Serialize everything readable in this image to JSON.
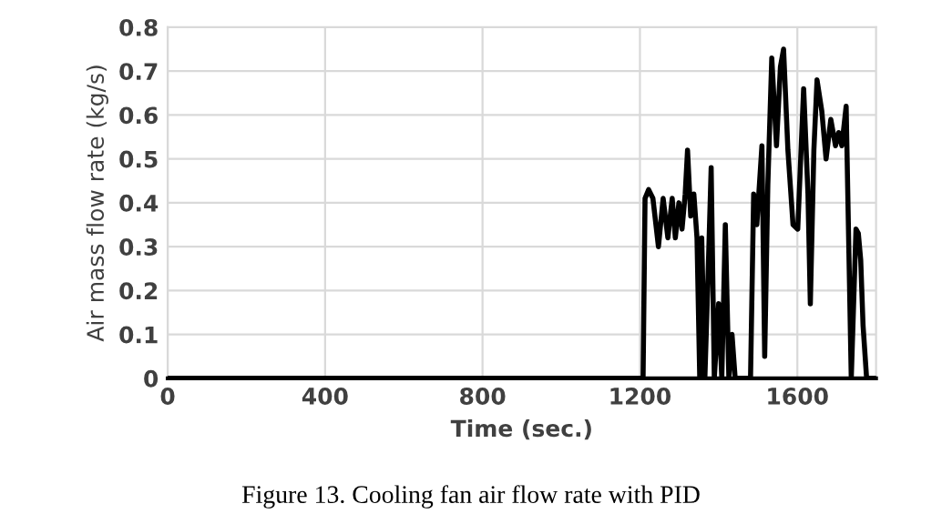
{
  "chart_data": {
    "type": "line",
    "xlabel": "Time (sec.)",
    "ylabel": "Air mass flow rate (kg/s)",
    "annotations": [
      "Figure 13. Cooling fan air flow rate with PID"
    ],
    "xlim": [
      0,
      1800
    ],
    "xticks": [
      0,
      400,
      800,
      1200,
      1600
    ],
    "ylim": [
      0,
      0.8
    ],
    "yticks": [
      0,
      0.1,
      0.2,
      0.3,
      0.4,
      0.5,
      0.6,
      0.7,
      0.8
    ],
    "grid": true,
    "legend": false,
    "series": [
      {
        "color": "#000000",
        "x": [
          0,
          1208,
          1213,
          1222,
          1233,
          1247,
          1259,
          1271,
          1282,
          1290,
          1299,
          1307,
          1315,
          1321,
          1329,
          1337,
          1345,
          1352,
          1357,
          1365,
          1373,
          1381,
          1389,
          1400,
          1408,
          1417,
          1426,
          1434,
          1442,
          1481,
          1489,
          1497,
          1510,
          1517,
          1525,
          1535,
          1547,
          1557,
          1565,
          1576,
          1589,
          1601,
          1616,
          1627,
          1633,
          1642,
          1650,
          1662,
          1673,
          1685,
          1697,
          1705,
          1713,
          1724,
          1737,
          1749,
          1755,
          1761,
          1767,
          1776,
          1800
        ],
        "values": [
          0,
          0,
          0.41,
          0.43,
          0.41,
          0.3,
          0.41,
          0.32,
          0.41,
          0.32,
          0.4,
          0.34,
          0.42,
          0.52,
          0.37,
          0.42,
          0.32,
          0,
          0.32,
          0,
          0.23,
          0.48,
          0,
          0.17,
          0,
          0.35,
          0,
          0.1,
          0,
          0,
          0.42,
          0.35,
          0.53,
          0.05,
          0.44,
          0.73,
          0.53,
          0.71,
          0.75,
          0.52,
          0.35,
          0.34,
          0.66,
          0.42,
          0.17,
          0.52,
          0.68,
          0.61,
          0.5,
          0.59,
          0.53,
          0.56,
          0.53,
          0.62,
          0,
          0.34,
          0.33,
          0.27,
          0.12,
          0,
          0
        ]
      }
    ]
  }
}
